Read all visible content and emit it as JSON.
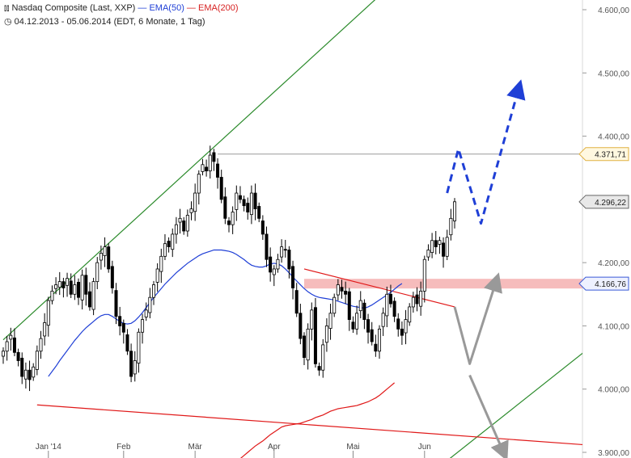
{
  "header": {
    "instrument_icon": "bar-chart-icon",
    "instrument": "Nasdaq Composite (Last, XXP)",
    "ema50_label": "EMA(50)",
    "ema200_label": "EMA(200)",
    "clock_icon": "clock-icon",
    "period": "04.12.2013 - 05.06.2014 (EDT, 6 Monate, 1 Tag)"
  },
  "colors": {
    "candle": "#000000",
    "ema50": "#1f3fd6",
    "ema200": "#e01818",
    "upper_channel": "#2a8a2a",
    "lower_trend": "#e01818",
    "support_zone": "#f4b0b0",
    "projection_blue": "#1f3fd6",
    "projection_gray": "#999999"
  },
  "chart_data": {
    "type": "candlestick",
    "y_range": [
      3890,
      4620
    ],
    "y_ticks": [
      "4.600,00",
      "4.500,00",
      "4.400,00",
      "4.300,00",
      "4.200,00",
      "4.100,00",
      "4.000,00",
      "3.900,00"
    ],
    "y_tick_values": [
      4600,
      4500,
      4400,
      4300,
      4200,
      4100,
      4000,
      3900
    ],
    "x_ticks": [
      "Jan '14",
      "Feb",
      "Mär",
      "Apr",
      "Mai",
      "Jun"
    ],
    "x_tick_index": [
      12,
      32,
      51,
      72,
      93,
      112
    ],
    "n_bars": 121,
    "close": [
      4060,
      4075,
      4085,
      4058,
      4045,
      4020,
      4030,
      4015,
      4035,
      4060,
      4080,
      4105,
      4140,
      4155,
      4165,
      4170,
      4160,
      4175,
      4150,
      4165,
      4145,
      4180,
      4150,
      4130,
      4170,
      4200,
      4215,
      4225,
      4190,
      4160,
      4115,
      4100,
      4090,
      4060,
      4020,
      4045,
      4090,
      4110,
      4125,
      4145,
      4165,
      4190,
      4210,
      4230,
      4225,
      4245,
      4260,
      4270,
      4250,
      4275,
      4285,
      4310,
      4340,
      4355,
      4345,
      4370,
      4360,
      4335,
      4300,
      4270,
      4260,
      4280,
      4310,
      4300,
      4290,
      4280,
      4310,
      4285,
      4270,
      4245,
      4205,
      4185,
      4190,
      4205,
      4225,
      4220,
      4190,
      4160,
      4120,
      4080,
      4050,
      4095,
      4125,
      4040,
      4030,
      4070,
      4100,
      4120,
      4145,
      4165,
      4155,
      4150,
      4110,
      4095,
      4120,
      4140,
      4110,
      4090,
      4075,
      4060,
      4095,
      4120,
      4150,
      4135,
      4115,
      4095,
      4085,
      4110,
      4130,
      4145,
      4135,
      4155,
      4205,
      4220,
      4235,
      4225,
      4235,
      4210,
      4240,
      4270,
      4296.22
    ],
    "ema50": [
      null,
      null,
      null,
      null,
      null,
      null,
      null,
      null,
      null,
      null,
      null,
      null,
      4020,
      4028,
      4036,
      4045,
      4053,
      4061,
      4069,
      4077,
      4084,
      4091,
      4097,
      4102,
      4107,
      4112,
      4116,
      4118,
      4118,
      4115,
      4111,
      4107,
      4104,
      4103,
      4104,
      4108,
      4114,
      4121,
      4129,
      4137,
      4145,
      4152,
      4159,
      4166,
      4172,
      4178,
      4184,
      4189,
      4194,
      4199,
      4203,
      4207,
      4211,
      4214,
      4216,
      4218,
      4220,
      4220,
      4220,
      4219,
      4218,
      4216,
      4213,
      4209,
      4205,
      4200,
      4196,
      4194,
      4193,
      4193,
      4195,
      4198,
      4199,
      4198,
      4195,
      4190,
      4184,
      4177,
      4171,
      4165,
      4159,
      4154,
      4150,
      4147,
      4145,
      4144,
      4143,
      4142,
      4141,
      4139,
      4137,
      4135,
      4133,
      4131,
      4130,
      4129,
      4128,
      4130,
      4133,
      4137,
      4141,
      4145,
      4149,
      4153,
      4158,
      4163,
      4167
    ],
    "ema200": [
      null,
      null,
      null,
      null,
      null,
      null,
      null,
      null,
      null,
      null,
      null,
      null,
      null,
      null,
      null,
      null,
      null,
      null,
      null,
      null,
      null,
      null,
      null,
      null,
      null,
      null,
      null,
      null,
      null,
      null,
      null,
      null,
      null,
      null,
      null,
      null,
      null,
      null,
      null,
      null,
      null,
      null,
      null,
      null,
      null,
      null,
      null,
      null,
      null,
      null,
      null,
      null,
      null,
      null,
      null,
      null,
      null,
      null,
      null,
      null,
      null,
      null,
      null,
      3890,
      3895,
      3900,
      3905,
      3910,
      3914,
      3918,
      3923,
      3928,
      3932,
      3936,
      3940,
      3942,
      3943,
      3944,
      3945,
      3946,
      3948,
      3950,
      3952,
      3955,
      3957,
      3959,
      3962,
      3965,
      3967,
      3969,
      3970,
      3971,
      3972,
      3973,
      3974,
      3976,
      3978,
      3980,
      3983,
      3986,
      3990,
      3995,
      4000,
      4005,
      4010
    ],
    "upper_channel": [
      {
        "i": 0,
        "v": 4078
      },
      {
        "i": 118,
        "v": 4720
      }
    ],
    "lower_channel": [
      {
        "i": 114,
        "v": 3868
      },
      {
        "i": 160,
        "v": 4085
      }
    ],
    "lower_trend": [
      {
        "i": 9,
        "v": 3975
      },
      {
        "i": 166,
        "v": 3907
      }
    ],
    "falling_trend": [
      {
        "i": 80,
        "v": 4190
      },
      {
        "i": 120,
        "v": 4130
      }
    ],
    "resistance": {
      "value": 4371.71,
      "from_i": 57
    },
    "support_zone": {
      "value": 4166.76,
      "from_i": 80
    },
    "projection_blue": [
      {
        "i": 118,
        "v": 4310
      },
      {
        "i": 121,
        "v": 4380
      },
      {
        "i": 127,
        "v": 4262
      },
      {
        "i": 137,
        "v": 4475
      }
    ],
    "projection_gray": [
      {
        "i": 120,
        "v": 4130
      },
      {
        "i": 124,
        "v": 4040
      },
      {
        "i": 131,
        "v": 4170
      },
      {
        "i": 124,
        "v": 4022
      },
      {
        "i": 133,
        "v": 3900
      }
    ],
    "value_tags": [
      {
        "label": "4.371,71",
        "value": 4371.71,
        "style": "resistance"
      },
      {
        "label": "4.296,22",
        "value": 4296.22,
        "style": "last"
      },
      {
        "label": "4.166,76",
        "value": 4166.76,
        "style": "support"
      }
    ],
    "grid": false,
    "legend": "top-left"
  }
}
